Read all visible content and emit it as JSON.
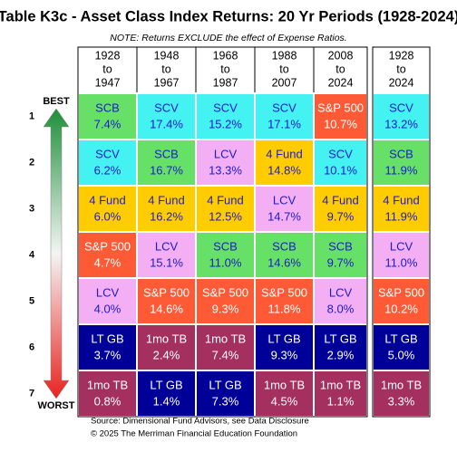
{
  "title": "Table K3c - Asset Class Index Returns: 20 Yr Periods (1928-2024)",
  "note": "NOTE: Returns EXCLUDE the effect of Expense Ratios.",
  "best": "BEST",
  "worst": "WORST",
  "columns": [
    [
      "1928",
      "to",
      "1947"
    ],
    [
      "1948",
      "to",
      "1967"
    ],
    [
      "1968",
      "to",
      "1987"
    ],
    [
      "1988",
      "to",
      "2007"
    ],
    [
      "2008",
      "to",
      "2024"
    ],
    [
      "1928",
      "to",
      "2024"
    ]
  ],
  "asset_styles": {
    "SCB": {
      "fill": "#66e066",
      "text": "#1c1ccc"
    },
    "SCV": {
      "fill": "#44f2f2",
      "text": "#1c1ccc"
    },
    "LCV": {
      "fill": "#f4aef4",
      "text": "#1c1ccc"
    },
    "4 Fund": {
      "fill": "#ffcc00",
      "text": "#1c1ccc"
    },
    "S&P 500": {
      "fill": "#ff5a36",
      "text": "#ffffff"
    },
    "LT GB": {
      "fill": "#000099",
      "text": "#ffffff"
    },
    "1mo TB": {
      "fill": "#a3305f",
      "text": "#ffffff"
    }
  },
  "rows": [
    {
      "rank": "1",
      "cells": [
        {
          "name": "SCB",
          "value": "7.4%"
        },
        {
          "name": "SCV",
          "value": "17.4%"
        },
        {
          "name": "SCV",
          "value": "15.2%"
        },
        {
          "name": "SCV",
          "value": "17.1%"
        },
        {
          "name": "S&P 500",
          "value": "10.7%"
        },
        {
          "name": "SCV",
          "value": "13.2%"
        }
      ]
    },
    {
      "rank": "2",
      "cells": [
        {
          "name": "SCV",
          "value": "6.2%"
        },
        {
          "name": "SCB",
          "value": "16.7%"
        },
        {
          "name": "LCV",
          "value": "13.3%"
        },
        {
          "name": "4 Fund",
          "value": "14.8%"
        },
        {
          "name": "SCV",
          "value": "10.1%"
        },
        {
          "name": "SCB",
          "value": "11.9%"
        }
      ]
    },
    {
      "rank": "3",
      "cells": [
        {
          "name": "4 Fund",
          "value": "6.0%"
        },
        {
          "name": "4 Fund",
          "value": "16.2%"
        },
        {
          "name": "4 Fund",
          "value": "12.5%"
        },
        {
          "name": "LCV",
          "value": "14.7%"
        },
        {
          "name": "4 Fund",
          "value": "9.7%"
        },
        {
          "name": "4 Fund",
          "value": "11.9%"
        }
      ]
    },
    {
      "rank": "4",
      "cells": [
        {
          "name": "S&P 500",
          "value": "4.7%"
        },
        {
          "name": "LCV",
          "value": "15.1%"
        },
        {
          "name": "SCB",
          "value": "11.0%"
        },
        {
          "name": "SCB",
          "value": "14.6%"
        },
        {
          "name": "SCB",
          "value": "9.7%"
        },
        {
          "name": "LCV",
          "value": "11.0%"
        }
      ]
    },
    {
      "rank": "5",
      "cells": [
        {
          "name": "LCV",
          "value": "4.0%"
        },
        {
          "name": "S&P 500",
          "value": "14.6%"
        },
        {
          "name": "S&P 500",
          "value": "9.3%"
        },
        {
          "name": "S&P 500",
          "value": "11.8%"
        },
        {
          "name": "LCV",
          "value": "8.0%"
        },
        {
          "name": "S&P 500",
          "value": "10.2%"
        }
      ]
    },
    {
      "rank": "6",
      "cells": [
        {
          "name": "LT GB",
          "value": "3.7%"
        },
        {
          "name": "1mo TB",
          "value": "2.4%"
        },
        {
          "name": "1mo TB",
          "value": "7.4%"
        },
        {
          "name": "LT GB",
          "value": "9.3%"
        },
        {
          "name": "LT GB",
          "value": "2.9%"
        },
        {
          "name": "LT GB",
          "value": "5.0%"
        }
      ]
    },
    {
      "rank": "7",
      "cells": [
        {
          "name": "1mo TB",
          "value": "0.8%"
        },
        {
          "name": "LT GB",
          "value": "1.4%"
        },
        {
          "name": "LT GB",
          "value": "7.3%"
        },
        {
          "name": "1mo TB",
          "value": "4.5%"
        },
        {
          "name": "1mo TB",
          "value": "1.1%"
        },
        {
          "name": "1mo TB",
          "value": "3.3%"
        }
      ]
    }
  ],
  "source": [
    "Source: Dimensional Fund Advisors, see Data Disclosure",
    "© 2025 The Merriman Financial Education Foundation"
  ]
}
